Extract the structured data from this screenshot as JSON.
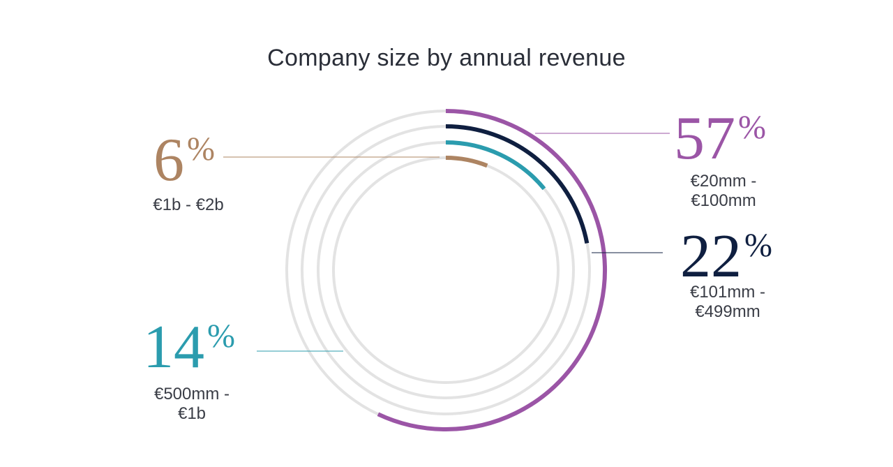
{
  "title": "Company size by annual revenue",
  "colors": {
    "track": "#e3e3e3",
    "s57": "#9b55a6",
    "s22": "#0f1f40",
    "s14": "#2b9cae",
    "s6": "#ad8462"
  },
  "chart_data": {
    "type": "radial-bar",
    "title": "Company size by annual revenue",
    "unit": "%",
    "max": 100,
    "series": [
      {
        "key": "s57",
        "range_line1": "€20mm -",
        "range_line2": "€100mm",
        "value": 57,
        "pct_label": "57",
        "pct_sign": "%"
      },
      {
        "key": "s22",
        "range_line1": "€101mm -",
        "range_line2": "€499mm",
        "value": 22,
        "pct_label": "22",
        "pct_sign": "%"
      },
      {
        "key": "s14",
        "range_line1": "€500mm -",
        "range_line2": "€1b",
        "value": 14,
        "pct_label": "14",
        "pct_sign": "%"
      },
      {
        "key": "s6",
        "range_line1": "€1b - €2b",
        "range_line2": "",
        "value": 6,
        "pct_label": "6",
        "pct_sign": "%"
      }
    ]
  }
}
